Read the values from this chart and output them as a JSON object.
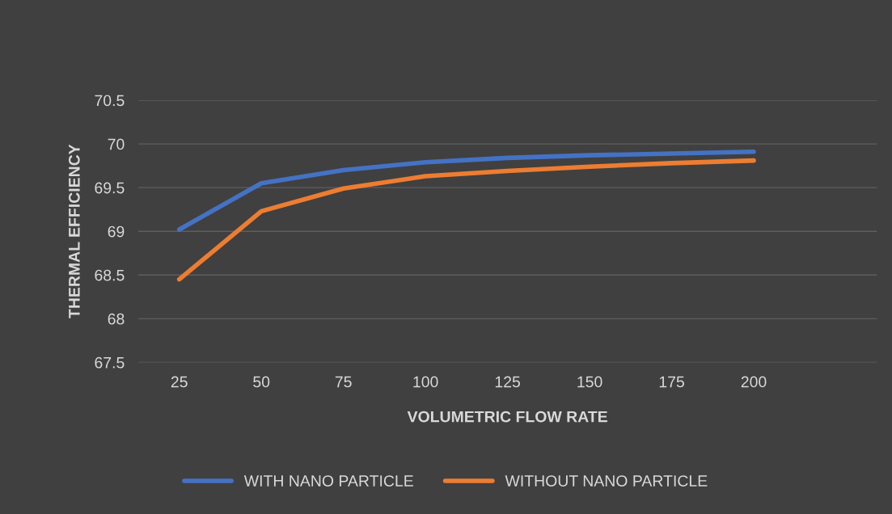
{
  "chart_data": {
    "type": "line",
    "xlabel": "VOLUMETRIC FLOW RATE",
    "ylabel": "THERMAL EFFICIENCY",
    "categories": [
      "25",
      "50",
      "75",
      "100",
      "125",
      "150",
      "175",
      "200",
      null
    ],
    "series": [
      {
        "name": "WITH NANO PARTICLE",
        "color": "#4472c4",
        "values": [
          69.02,
          69.55,
          69.7,
          69.79,
          69.84,
          69.87,
          69.89,
          69.91,
          null
        ]
      },
      {
        "name": "WITHOUT NANO PARTICLE",
        "color": "#ed7d31",
        "values": [
          68.45,
          69.23,
          69.49,
          69.63,
          69.69,
          69.74,
          69.78,
          69.81,
          null
        ]
      }
    ],
    "ylim": [
      67.5,
      70.5
    ],
    "yticks": [
      67.5,
      68,
      68.5,
      69,
      69.5,
      70,
      70.5
    ],
    "grid": "y",
    "legend": "bottom",
    "marker": "none",
    "line_style": "solid"
  }
}
